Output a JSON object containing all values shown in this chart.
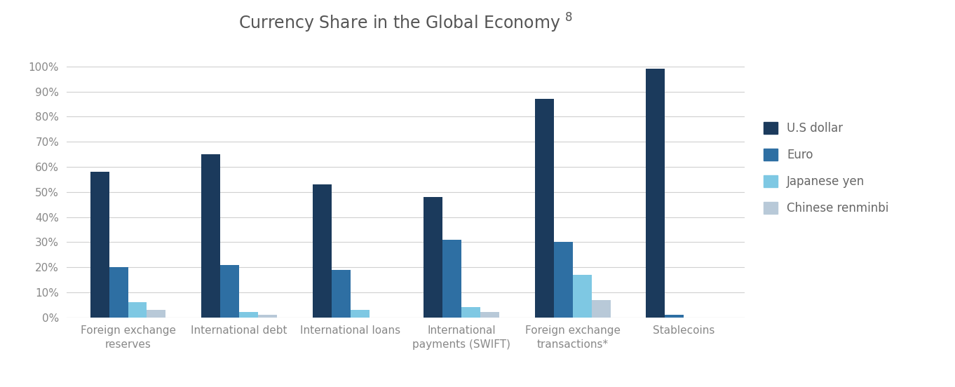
{
  "title": "Currency Share in the Global Economy $^{8}$",
  "categories": [
    "Foreign exchange\nreserves",
    "International debt",
    "International loans",
    "International\npayments (SWIFT)",
    "Foreign exchange\ntransactions*",
    "Stablecoins"
  ],
  "series": {
    "U.S dollar": [
      58,
      65,
      53,
      48,
      87,
      99
    ],
    "Euro": [
      20,
      21,
      19,
      31,
      30,
      1
    ],
    "Japanese yen": [
      6,
      2,
      3,
      4,
      17,
      0
    ],
    "Chinese renminbi": [
      3,
      1,
      0,
      2,
      7,
      0
    ]
  },
  "colors": {
    "U.S dollar": "#1b3a5c",
    "Euro": "#2e6fa3",
    "Japanese yen": "#7ec8e3",
    "Chinese renminbi": "#b8c9d8"
  },
  "ylim": [
    0,
    108
  ],
  "yticks": [
    0,
    10,
    20,
    30,
    40,
    50,
    60,
    70,
    80,
    90,
    100
  ],
  "ytick_labels": [
    "0%",
    "10%",
    "20%",
    "30%",
    "40%",
    "50%",
    "60%",
    "70%",
    "80%",
    "90%",
    "100%"
  ],
  "background_color": "#ffffff",
  "grid_color": "#d0d0d0",
  "title_fontsize": 17,
  "tick_fontsize": 11,
  "legend_fontsize": 12,
  "bar_width": 0.17,
  "group_width": 1.0
}
